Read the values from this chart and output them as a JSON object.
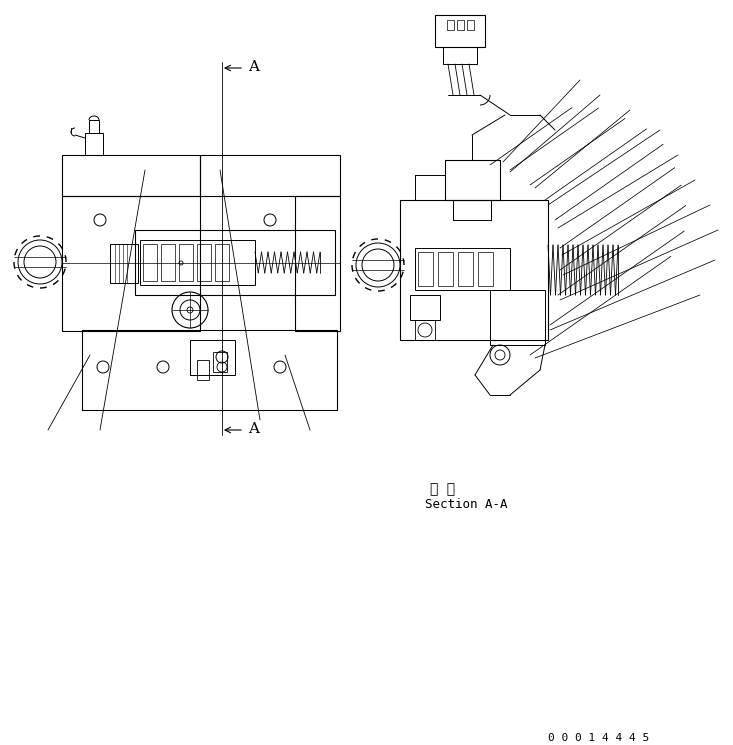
{
  "background_color": "#ffffff",
  "line_color": "#000000",
  "text_color": "#000000",
  "title_jp": "断 面",
  "title_en": "Section A-A",
  "part_number": "0 0 0 1 4 4 4 5",
  "fig_width": 7.33,
  "fig_height": 7.45,
  "dpi": 100
}
